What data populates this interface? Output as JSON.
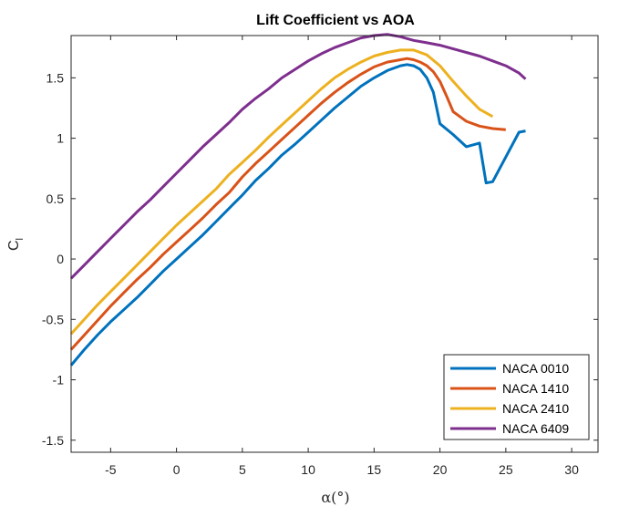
{
  "chart_data": {
    "type": "line",
    "title": "Lift Coefficient vs AOA",
    "xlabel": "α(°)",
    "ylabel": "C",
    "ylabel_subscript": "l",
    "xlim": [
      -8,
      32
    ],
    "ylim": [
      -1.6,
      1.85
    ],
    "xticks": [
      -5,
      0,
      5,
      10,
      15,
      20,
      25,
      30
    ],
    "xtick_labels": [
      "-5",
      "0",
      "5",
      "10",
      "15",
      "20",
      "25",
      "30"
    ],
    "yticks": [
      -1.5,
      -1,
      -0.5,
      0,
      0.5,
      1,
      1.5
    ],
    "ytick_labels": [
      "-1.5",
      "-1",
      "-0.5",
      "0",
      "0.5",
      "1",
      "1.5"
    ],
    "grid": false,
    "legend_position": "bottom-right",
    "series": [
      {
        "name": "NACA 0010",
        "color": "#0072BD",
        "x": [
          -8,
          -7,
          -6,
          -5,
          -4,
          -3,
          -2,
          -1,
          0,
          1,
          2,
          3,
          4,
          5,
          6,
          7,
          8,
          9,
          10,
          11,
          12,
          13,
          14,
          15,
          16,
          17,
          17.5,
          18,
          18.5,
          19,
          19.5,
          20,
          21,
          22,
          23,
          23.5,
          24,
          26,
          26.5
        ],
        "y": [
          -0.88,
          -0.75,
          -0.63,
          -0.52,
          -0.42,
          -0.32,
          -0.21,
          -0.1,
          0.0,
          0.1,
          0.2,
          0.31,
          0.42,
          0.53,
          0.65,
          0.75,
          0.86,
          0.95,
          1.05,
          1.15,
          1.25,
          1.34,
          1.43,
          1.5,
          1.56,
          1.6,
          1.61,
          1.6,
          1.57,
          1.5,
          1.38,
          1.12,
          1.03,
          0.93,
          0.96,
          0.63,
          0.64,
          1.05,
          1.06
        ]
      },
      {
        "name": "NACA 1410",
        "color": "#D95319",
        "x": [
          -8,
          -7,
          -6,
          -5,
          -4,
          -3,
          -2,
          -1,
          0,
          1,
          2,
          3,
          4,
          5,
          6,
          7,
          8,
          9,
          10,
          11,
          12,
          13,
          14,
          15,
          16,
          17,
          17.5,
          18,
          18.5,
          19,
          19.5,
          20,
          20.5,
          21,
          22,
          23,
          24,
          25
        ],
        "y": [
          -0.75,
          -0.63,
          -0.51,
          -0.39,
          -0.28,
          -0.17,
          -0.07,
          0.04,
          0.14,
          0.24,
          0.34,
          0.45,
          0.55,
          0.68,
          0.79,
          0.89,
          0.99,
          1.09,
          1.19,
          1.29,
          1.38,
          1.46,
          1.53,
          1.59,
          1.63,
          1.65,
          1.66,
          1.65,
          1.63,
          1.6,
          1.55,
          1.47,
          1.35,
          1.22,
          1.14,
          1.1,
          1.08,
          1.07
        ]
      },
      {
        "name": "NACA 2410",
        "color": "#EDB120",
        "x": [
          -8,
          -7,
          -6,
          -5,
          -4,
          -3,
          -2,
          -1,
          0,
          1,
          2,
          3,
          4,
          5,
          6,
          7,
          8,
          9,
          10,
          11,
          12,
          13,
          14,
          15,
          16,
          17,
          18,
          19,
          20,
          21,
          22,
          23,
          24
        ],
        "y": [
          -0.62,
          -0.5,
          -0.38,
          -0.27,
          -0.16,
          -0.05,
          0.06,
          0.17,
          0.28,
          0.38,
          0.48,
          0.58,
          0.7,
          0.8,
          0.9,
          1.01,
          1.11,
          1.21,
          1.31,
          1.41,
          1.5,
          1.57,
          1.63,
          1.68,
          1.71,
          1.73,
          1.73,
          1.69,
          1.6,
          1.47,
          1.35,
          1.24,
          1.18
        ]
      },
      {
        "name": "NACA 6409",
        "color": "#7E2F8E",
        "x": [
          -8,
          -7,
          -6,
          -5,
          -4,
          -3,
          -2,
          -1,
          0,
          1,
          2,
          3,
          4,
          5,
          6,
          7,
          8,
          9,
          10,
          11,
          12,
          13,
          14,
          15,
          16,
          17,
          18,
          19,
          20,
          21,
          22,
          23,
          24,
          25,
          26,
          26.5
        ],
        "y": [
          -0.16,
          -0.05,
          0.06,
          0.17,
          0.28,
          0.39,
          0.49,
          0.6,
          0.71,
          0.82,
          0.93,
          1.03,
          1.13,
          1.24,
          1.33,
          1.41,
          1.5,
          1.57,
          1.64,
          1.7,
          1.75,
          1.79,
          1.83,
          1.85,
          1.86,
          1.84,
          1.81,
          1.79,
          1.77,
          1.74,
          1.71,
          1.68,
          1.64,
          1.6,
          1.54,
          1.49
        ]
      }
    ]
  }
}
